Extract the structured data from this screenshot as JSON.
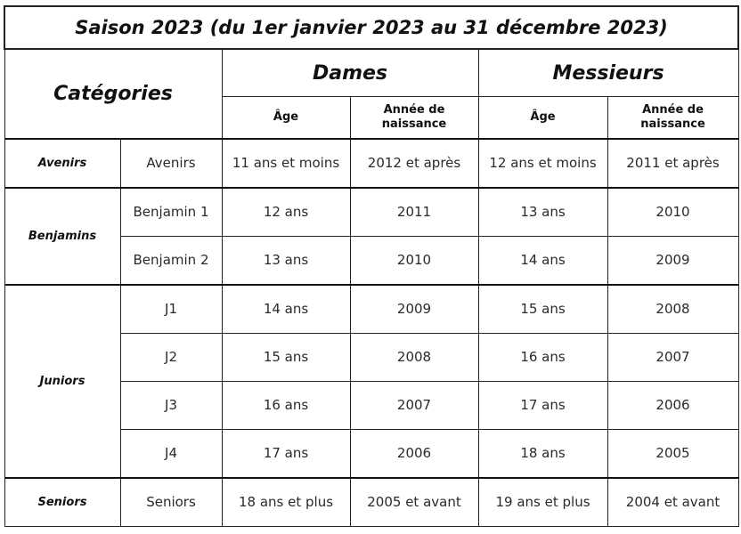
{
  "title": "Saison 2023 (du 1er janvier 2023 au 31 décembre 2023)",
  "header": {
    "categories": "Catégories",
    "dames": "Dames",
    "messieurs": "Messieurs",
    "age": "Âge",
    "annee_line1": "Année de",
    "annee_line2": "naissance"
  },
  "groups": [
    {
      "name": "Avenirs",
      "rows": [
        {
          "sub": "Avenirs",
          "dames_age": "11 ans et moins",
          "dames_annee": "2012 et après",
          "messieurs_age": "12 ans et moins",
          "messieurs_annee": "2011 et après"
        }
      ]
    },
    {
      "name": "Benjamins",
      "rows": [
        {
          "sub": "Benjamin 1",
          "dames_age": "12 ans",
          "dames_annee": "2011",
          "messieurs_age": "13 ans",
          "messieurs_annee": "2010"
        },
        {
          "sub": "Benjamin 2",
          "dames_age": "13 ans",
          "dames_annee": "2010",
          "messieurs_age": "14 ans",
          "messieurs_annee": "2009"
        }
      ]
    },
    {
      "name": "Juniors",
      "rows": [
        {
          "sub": "J1",
          "dames_age": "14 ans",
          "dames_annee": "2009",
          "messieurs_age": "15 ans",
          "messieurs_annee": "2008"
        },
        {
          "sub": "J2",
          "dames_age": "15 ans",
          "dames_annee": "2008",
          "messieurs_age": "16 ans",
          "messieurs_annee": "2007"
        },
        {
          "sub": "J3",
          "dames_age": "16 ans",
          "dames_annee": "2007",
          "messieurs_age": "17 ans",
          "messieurs_annee": "2006"
        },
        {
          "sub": "J4",
          "dames_age": "17 ans",
          "dames_annee": "2006",
          "messieurs_age": "18 ans",
          "messieurs_annee": "2005"
        }
      ]
    },
    {
      "name": "Seniors",
      "rows": [
        {
          "sub": "Seniors",
          "dames_age": "18 ans et plus",
          "dames_annee": "2005 et avant",
          "messieurs_age": "19 ans et plus",
          "messieurs_annee": "2004 et avant"
        }
      ]
    }
  ]
}
